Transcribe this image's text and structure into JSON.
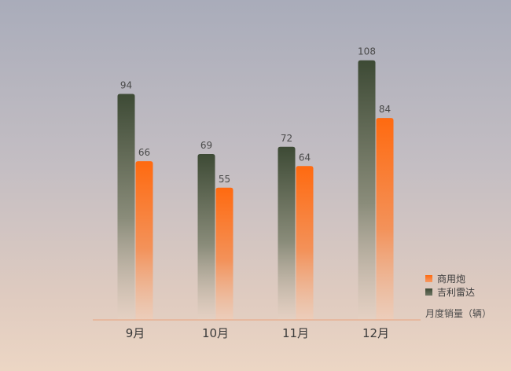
{
  "chart_data": {
    "type": "bar",
    "categories": [
      "9月",
      "10月",
      "11月",
      "12月"
    ],
    "series": [
      {
        "name": "吉利雷达",
        "values": [
          94,
          69,
          72,
          108
        ],
        "color": "#3d4a35"
      },
      {
        "name": "商用炮",
        "values": [
          66,
          55,
          64,
          84
        ],
        "color": "#ff6a10"
      }
    ],
    "xlabel": "月度销量（辆）",
    "ylim": [
      0,
      120
    ],
    "legend": "bottom-right",
    "grid": false
  }
}
